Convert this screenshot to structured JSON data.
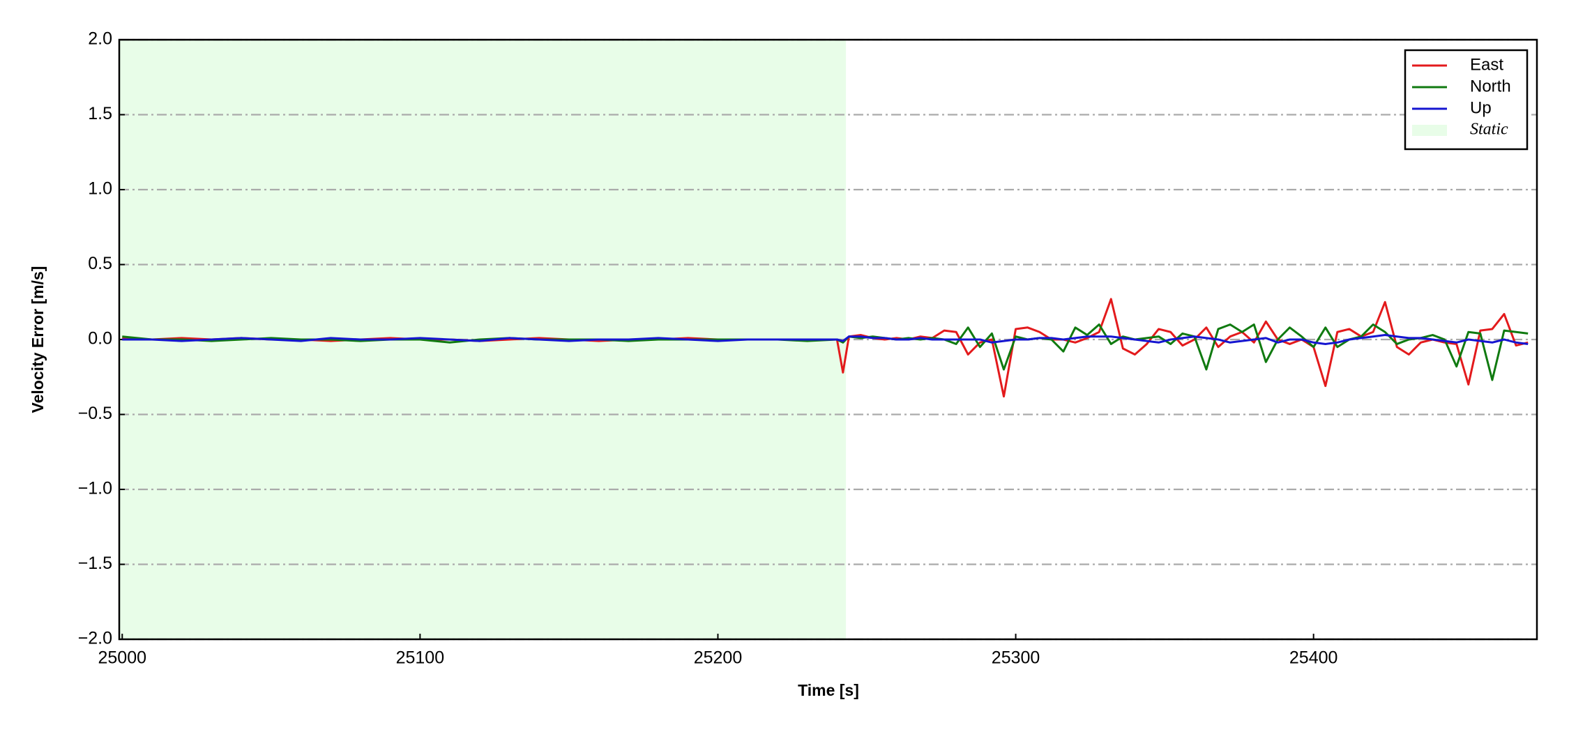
{
  "chart_data": {
    "type": "line",
    "x_label": "Time [s]",
    "y_label": "Velocity Error [m/s]",
    "x": [
      25000,
      25010,
      25020,
      25030,
      25040,
      25050,
      25060,
      25070,
      25080,
      25090,
      25100,
      25110,
      25120,
      25130,
      25140,
      25150,
      25160,
      25170,
      25180,
      25190,
      25200,
      25210,
      25220,
      25230,
      25240,
      25242,
      25244,
      25248,
      25252,
      25256,
      25260,
      25264,
      25268,
      25272,
      25276,
      25280,
      25284,
      25288,
      25292,
      25296,
      25300,
      25304,
      25308,
      25312,
      25316,
      25320,
      25324,
      25328,
      25332,
      25336,
      25340,
      25344,
      25348,
      25352,
      25356,
      25360,
      25364,
      25368,
      25372,
      25376,
      25380,
      25384,
      25388,
      25392,
      25396,
      25400,
      25404,
      25408,
      25412,
      25416,
      25420,
      25424,
      25428,
      25432,
      25436,
      25440,
      25444,
      25448,
      25452,
      25456,
      25460,
      25464,
      25468,
      25472
    ],
    "series": [
      {
        "name": "East",
        "color": "#e31a1c",
        "values": [
          0.01,
          0.0,
          0.01,
          0.0,
          0.01,
          0.0,
          0.0,
          -0.01,
          0.0,
          0.01,
          0.0,
          0.0,
          -0.01,
          0.0,
          0.01,
          0.0,
          -0.01,
          0.0,
          0.0,
          0.01,
          0.0,
          0.0,
          0.0,
          0.0,
          0.0,
          -0.22,
          0.02,
          0.03,
          0.01,
          0.0,
          0.01,
          0.0,
          0.02,
          0.01,
          0.06,
          0.05,
          -0.1,
          -0.02,
          0.0,
          -0.38,
          0.07,
          0.08,
          0.05,
          0.0,
          0.0,
          -0.02,
          0.01,
          0.05,
          0.27,
          -0.06,
          -0.1,
          -0.03,
          0.07,
          0.05,
          -0.04,
          0.0,
          0.08,
          -0.05,
          0.02,
          0.05,
          -0.02,
          0.12,
          0.0,
          -0.03,
          0.0,
          -0.05,
          -0.31,
          0.05,
          0.07,
          0.02,
          0.05,
          0.25,
          -0.05,
          -0.1,
          -0.02,
          0.0,
          -0.02,
          -0.03,
          -0.3,
          0.06,
          0.07,
          0.17,
          -0.04,
          -0.02
        ]
      },
      {
        "name": "North",
        "color": "#107a10",
        "values": [
          0.02,
          0.0,
          0.0,
          -0.01,
          0.0,
          0.01,
          0.0,
          0.0,
          -0.01,
          0.0,
          0.0,
          -0.02,
          0.0,
          0.01,
          0.0,
          0.0,
          0.0,
          -0.01,
          0.0,
          0.0,
          0.0,
          0.0,
          0.0,
          -0.01,
          0.0,
          -0.02,
          0.02,
          0.01,
          0.02,
          0.01,
          0.0,
          0.01,
          0.0,
          0.01,
          0.0,
          -0.03,
          0.08,
          -0.05,
          0.04,
          -0.2,
          0.02,
          0.0,
          0.01,
          0.0,
          -0.08,
          0.08,
          0.03,
          0.1,
          -0.03,
          0.02,
          0.0,
          0.01,
          0.02,
          -0.03,
          0.04,
          0.02,
          -0.2,
          0.07,
          0.1,
          0.05,
          0.1,
          -0.15,
          0.0,
          0.08,
          0.02,
          -0.05,
          0.08,
          -0.05,
          0.0,
          0.02,
          0.1,
          0.05,
          -0.03,
          0.0,
          0.01,
          0.03,
          0.0,
          -0.18,
          0.05,
          0.04,
          -0.27,
          0.06,
          0.05,
          0.04
        ]
      },
      {
        "name": "Up",
        "color": "#1515d0",
        "values": [
          0.0,
          0.0,
          -0.01,
          0.0,
          0.01,
          0.0,
          -0.01,
          0.01,
          0.0,
          0.0,
          0.01,
          0.0,
          -0.01,
          0.01,
          0.0,
          -0.01,
          0.0,
          0.0,
          0.01,
          0.0,
          -0.01,
          0.0,
          0.0,
          0.0,
          0.0,
          -0.01,
          0.02,
          0.02,
          0.01,
          0.01,
          0.0,
          0.0,
          0.01,
          0.0,
          0.0,
          0.0,
          0.0,
          0.0,
          -0.02,
          -0.01,
          0.0,
          0.0,
          0.01,
          0.01,
          0.0,
          0.01,
          0.02,
          0.02,
          0.02,
          0.01,
          0.0,
          -0.01,
          -0.02,
          0.0,
          0.01,
          0.02,
          0.01,
          0.0,
          -0.02,
          -0.01,
          0.0,
          0.01,
          -0.02,
          0.0,
          0.0,
          -0.02,
          -0.03,
          -0.02,
          0.0,
          0.01,
          0.02,
          0.03,
          0.02,
          0.01,
          0.01,
          0.0,
          -0.01,
          -0.02,
          0.0,
          -0.01,
          -0.02,
          0.0,
          -0.02,
          -0.03
        ]
      }
    ],
    "shaded_regions": [
      {
        "name": "Static",
        "xlim": [
          24999,
          25243
        ],
        "color": "#e8fde8"
      }
    ],
    "xlim": [
      24999,
      25475
    ],
    "ylim": [
      -2.0,
      2.0
    ],
    "xticks": [
      25000,
      25100,
      25200,
      25300,
      25400
    ],
    "yticks": [
      {
        "value": -2.0,
        "label": "−2.0"
      },
      {
        "value": -1.5,
        "label": "−1.5"
      },
      {
        "value": -1.0,
        "label": "−1.0"
      },
      {
        "value": -0.5,
        "label": "−0.5"
      },
      {
        "value": 0.0,
        "label": "0.0"
      },
      {
        "value": 0.5,
        "label": "0.5"
      },
      {
        "value": 1.0,
        "label": "1.0"
      },
      {
        "value": 1.5,
        "label": "1.5"
      },
      {
        "value": 2.0,
        "label": "2.0"
      }
    ],
    "grid": true,
    "legend_position": "upper right"
  }
}
